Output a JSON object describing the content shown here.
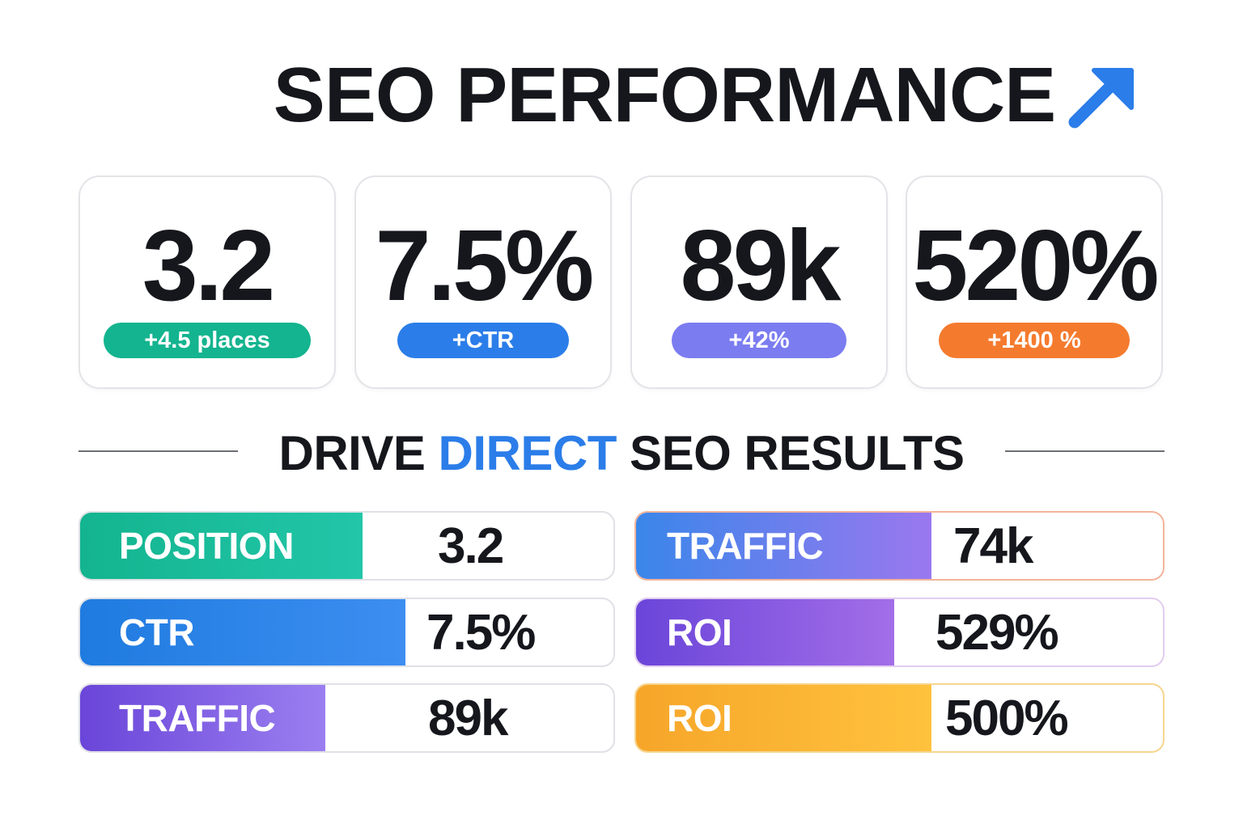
{
  "header": {
    "title": "SEO PERFORMANCE",
    "icon": "trend-up-arrow-icon",
    "icon_color": "#2b7de9"
  },
  "cards": [
    {
      "value": "3.2",
      "badge": "+4.5 places",
      "badge_color": "#13b48f"
    },
    {
      "value": "7.5%",
      "badge": "+CTR",
      "badge_color": "#2b7de9"
    },
    {
      "value": "89k",
      "badge": "+42%",
      "badge_color": "#7b7cf0"
    },
    {
      "value": "520%",
      "badge": "+1400 %",
      "badge_color": "#f47b2e"
    }
  ],
  "section": {
    "title_pre": "DRIVE ",
    "title_accent": "DIRECT",
    "title_post": " SEO RESULTS",
    "accent_color": "#2b7de9"
  },
  "metrics_left": [
    {
      "label": "POSITION",
      "value": "3.2",
      "fill": 0.53,
      "from": "#13b48f",
      "to": "#22c6a8"
    },
    {
      "label": "CTR",
      "value": "7.5%",
      "fill": 0.61,
      "from": "#1f7be0",
      "to": "#3d8ef0"
    },
    {
      "label": "TRAFFIC",
      "value": "89k",
      "fill": 0.46,
      "from": "#6a45d9",
      "to": "#9b7ff0"
    }
  ],
  "metrics_right": [
    {
      "label": "TRAFFIC",
      "value": "74k",
      "fill": 0.56,
      "from": "#3a86ea",
      "to": "#9a78ef"
    },
    {
      "label": "ROI",
      "value": "529%",
      "fill": 0.49,
      "from": "#6a45d9",
      "to": "#a36ee8"
    },
    {
      "label": "ROI",
      "value": "500%",
      "fill": 0.56,
      "from": "#f6a62a",
      "to": "#ffc23d"
    }
  ]
}
